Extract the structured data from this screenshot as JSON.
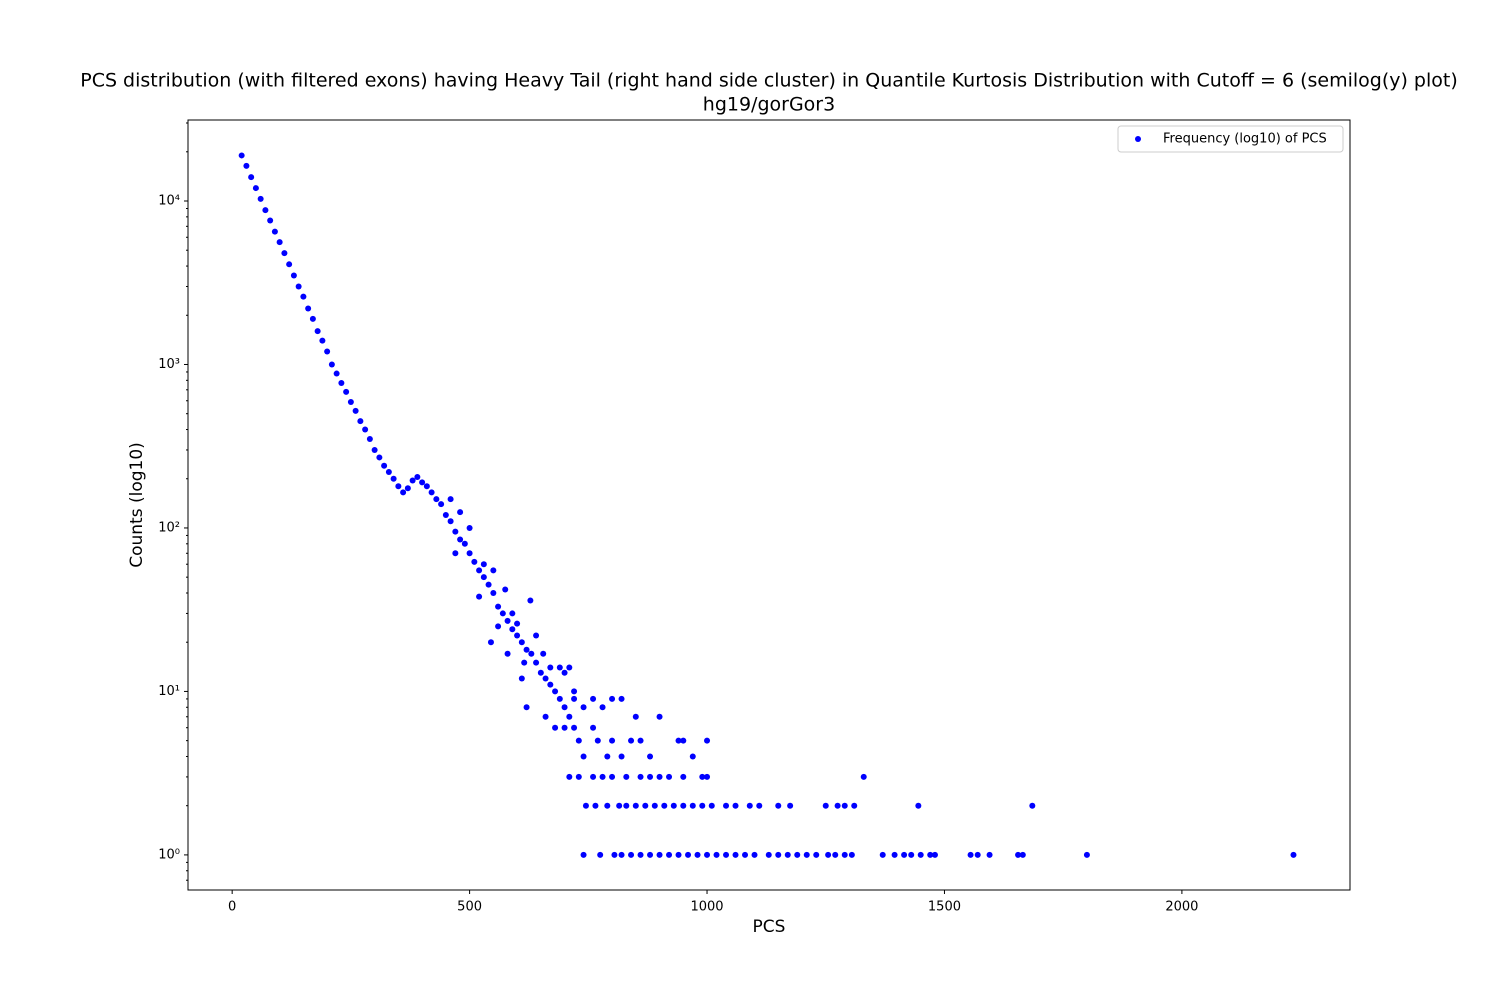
{
  "chart_data": {
    "type": "scatter",
    "title": "PCS distribution (with filtered exons) having Heavy Tail (right hand side cluster) in Quantile Kurtosis Distribution with Cutoff = 6 (semilog(y) plot)",
    "subtitle": "hg19/gorGor3",
    "x_label": "PCS",
    "y_label": "Counts (log10)",
    "xlim": [
      -93,
      2354
    ],
    "ylim": [
      0.61,
      31300
    ],
    "y_scale": "log",
    "xticks": [
      0,
      500,
      1000,
      1500,
      2000
    ],
    "yticks": [
      {
        "value": 1,
        "label": "10⁰"
      },
      {
        "value": 10,
        "label": "10¹"
      },
      {
        "value": 100,
        "label": "10²"
      },
      {
        "value": 1000,
        "label": "10³"
      },
      {
        "value": 10000,
        "label": "10⁴"
      }
    ],
    "legend": "upper right",
    "series": [
      {
        "name": "Frequency (log10) of PCS",
        "color": "#0000ff",
        "x": [
          20,
          30,
          40,
          50,
          60,
          70,
          80,
          90,
          100,
          110,
          120,
          130,
          140,
          150,
          160,
          170,
          180,
          190,
          200,
          210,
          220,
          230,
          240,
          250,
          260,
          270,
          280,
          290,
          300,
          310,
          320,
          330,
          340,
          350,
          360,
          370,
          380,
          390,
          400,
          410,
          420,
          430,
          440,
          450,
          460,
          470,
          480,
          490,
          500,
          510,
          520,
          530,
          540,
          550,
          560,
          570,
          580,
          590,
          600,
          610,
          620,
          630,
          640,
          650,
          660,
          670,
          680,
          690,
          700,
          710,
          720,
          730,
          600,
          615,
          628,
          640,
          655,
          670,
          690,
          700,
          710,
          720,
          740,
          760,
          780,
          800,
          820,
          850,
          900,
          560,
          575,
          590,
          520,
          500,
          480,
          460,
          470,
          530,
          550,
          545,
          580,
          610,
          620,
          660,
          680,
          700,
          720,
          740,
          760,
          770,
          790,
          800,
          820,
          840,
          860,
          880,
          940,
          950,
          970,
          1000,
          710,
          730,
          760,
          780,
          800,
          830,
          860,
          880,
          900,
          920,
          950,
          990,
          1000,
          1330,
          745,
          765,
          790,
          815,
          830,
          850,
          870,
          890,
          910,
          930,
          950,
          970,
          990,
          1010,
          1040,
          1060,
          1090,
          1110,
          1150,
          1175,
          1250,
          1275,
          1290,
          1310,
          1445,
          1685,
          740,
          775,
          805,
          820,
          840,
          860,
          880,
          900,
          920,
          940,
          960,
          980,
          1000,
          1020,
          1040,
          1060,
          1080,
          1100,
          1130,
          1150,
          1170,
          1190,
          1210,
          1230,
          1255,
          1270,
          1290,
          1305,
          1370,
          1395,
          1415,
          1430,
          1450,
          1470,
          1480,
          1555,
          1570,
          1595,
          1655,
          1665,
          1800,
          2235
        ],
        "values": [
          19000,
          16400,
          14000,
          12000,
          10300,
          8800,
          7600,
          6500,
          5600,
          4800,
          4100,
          3500,
          3000,
          2600,
          2200,
          1900,
          1600,
          1400,
          1200,
          1000,
          880,
          770,
          680,
          590,
          520,
          450,
          400,
          350,
          300,
          270,
          240,
          220,
          200,
          180,
          165,
          175,
          195,
          205,
          190,
          180,
          165,
          150,
          140,
          120,
          110,
          95,
          85,
          80,
          70,
          62,
          55,
          50,
          45,
          40,
          33,
          30,
          27,
          24,
          22,
          20,
          18,
          17,
          15,
          13,
          12,
          11,
          10,
          9,
          8,
          7,
          6,
          5,
          26,
          15,
          36,
          22,
          17,
          14,
          14,
          13,
          14,
          10,
          8,
          9,
          8,
          9,
          9,
          7,
          7,
          25,
          42,
          30,
          38,
          100,
          125,
          150,
          70,
          60,
          55,
          20,
          17,
          12,
          8,
          7,
          6,
          6,
          9,
          4,
          6,
          5,
          4,
          5,
          4,
          5,
          5,
          4,
          5,
          5,
          4,
          5,
          3,
          3,
          3,
          3,
          3,
          3,
          3,
          3,
          3,
          3,
          3,
          3,
          3,
          3,
          2,
          2,
          2,
          2,
          2,
          2,
          2,
          2,
          2,
          2,
          2,
          2,
          2,
          2,
          2,
          2,
          2,
          2,
          2,
          2,
          2,
          2,
          2,
          2,
          2,
          2,
          1,
          1,
          1,
          1,
          1,
          1,
          1,
          1,
          1,
          1,
          1,
          1,
          1,
          1,
          1,
          1,
          1,
          1,
          1,
          1,
          1,
          1,
          1,
          1,
          1,
          1,
          1,
          1,
          1,
          1,
          1,
          1,
          1,
          1,
          1,
          1,
          1,
          1,
          1,
          1,
          1,
          1
        ]
      }
    ]
  }
}
